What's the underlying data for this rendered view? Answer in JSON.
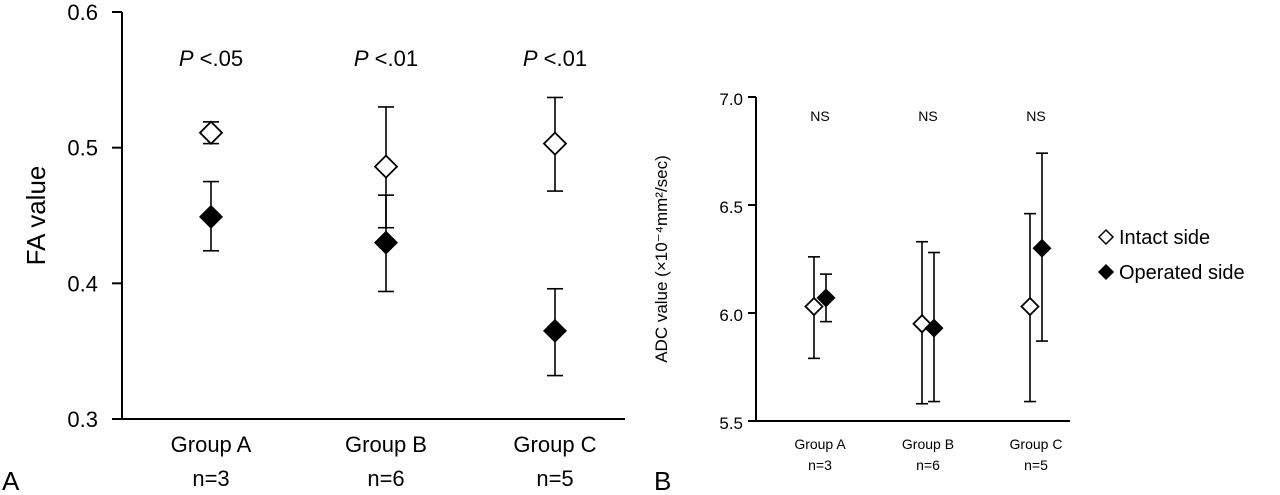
{
  "chart_data": [
    {
      "type": "scatter",
      "panel_label": "A",
      "ylabel": "FA value",
      "ylim": [
        0.3,
        0.6
      ],
      "yticks": [
        "0.3",
        "0.4",
        "0.5",
        "0.6"
      ],
      "categories": [
        {
          "name": "Group A",
          "n": "n=3"
        },
        {
          "name": "Group B",
          "n": "n=6"
        },
        {
          "name": "Group C",
          "n": "n=5"
        }
      ],
      "annotations": [
        {
          "p": "P",
          "text": " <.05"
        },
        {
          "p": "P",
          "text": " <.01"
        },
        {
          "p": "P",
          "text": " <.01"
        }
      ],
      "series": [
        {
          "marker": "open-diamond",
          "values": [
            0.511,
            0.486,
            0.503
          ],
          "err_low": [
            0.503,
            0.441,
            0.468
          ],
          "err_high": [
            0.519,
            0.53,
            0.537
          ]
        },
        {
          "marker": "filled-diamond",
          "values": [
            0.449,
            0.43,
            0.365
          ],
          "err_low": [
            0.424,
            0.394,
            0.332
          ],
          "err_high": [
            0.475,
            0.465,
            0.396
          ]
        }
      ],
      "grid": false,
      "legend": "none"
    },
    {
      "type": "scatter",
      "panel_label": "B",
      "ylabel": "ADC value (×10⁻⁴mm²/sec)",
      "ylim": [
        5.5,
        7.0
      ],
      "yticks": [
        "5.5",
        "6.0",
        "6.5",
        "7.0"
      ],
      "categories": [
        {
          "name": "Group A",
          "n": "n=3"
        },
        {
          "name": "Group B",
          "n": "n=6"
        },
        {
          "name": "Group C",
          "n": "n=5"
        }
      ],
      "annotations": [
        {
          "p": "",
          "text": "NS"
        },
        {
          "p": "",
          "text": "NS"
        },
        {
          "p": "",
          "text": "NS"
        }
      ],
      "series": [
        {
          "name": "Intact side",
          "marker": "open-diamond",
          "values": [
            6.03,
            5.95,
            6.03
          ],
          "err_low": [
            5.79,
            5.58,
            5.59
          ],
          "err_high": [
            6.26,
            6.33,
            6.46
          ]
        },
        {
          "name": "Operated side",
          "marker": "filled-diamond",
          "values": [
            6.07,
            5.93,
            6.3
          ],
          "err_low": [
            5.96,
            5.59,
            5.87
          ],
          "err_high": [
            6.18,
            6.28,
            6.74
          ]
        }
      ],
      "grid": false,
      "legend": "right"
    }
  ]
}
